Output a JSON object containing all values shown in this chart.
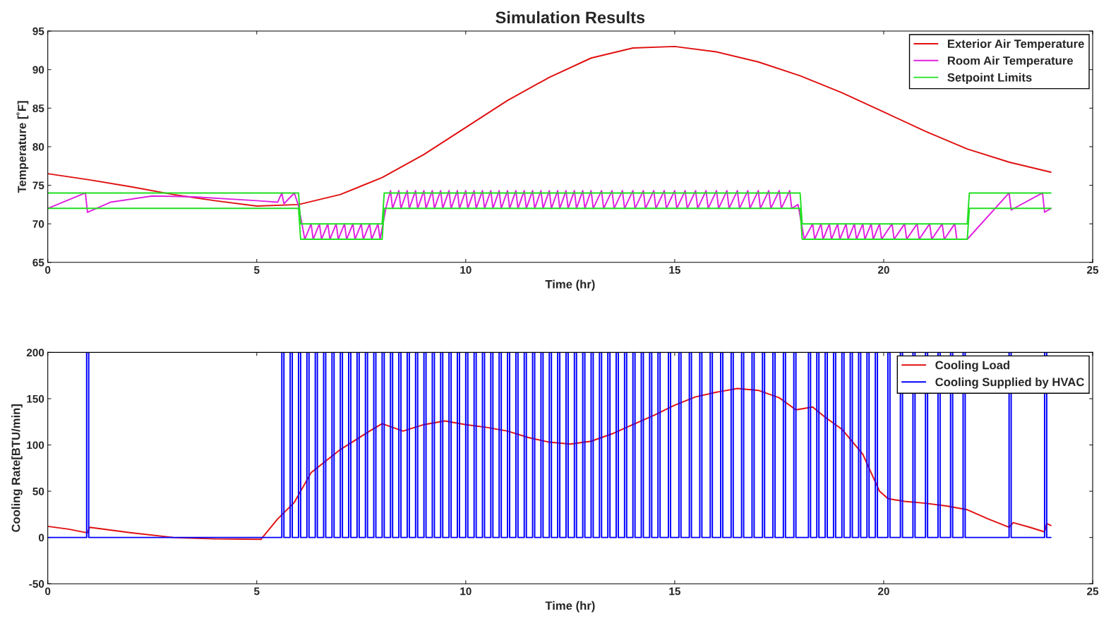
{
  "chart_data": [
    {
      "type": "line",
      "title": "Simulation Results",
      "xlabel": "Time (hr)",
      "ylabel": "Temperature [˚F]",
      "xlim": [
        0,
        25
      ],
      "xticks": [
        0,
        5,
        10,
        15,
        20,
        25
      ],
      "ylim": [
        65,
        95
      ],
      "yticks": [
        65,
        70,
        75,
        80,
        85,
        90,
        95
      ],
      "legend": "top right",
      "series": [
        {
          "name": "Exterior Air Temperature",
          "color": "#e01010",
          "type": "line",
          "x": [
            0,
            1,
            2,
            3,
            4,
            5,
            6,
            7,
            8,
            9,
            10,
            11,
            12,
            13,
            14,
            15,
            16,
            17,
            18,
            19,
            20,
            21,
            22,
            23,
            24
          ],
          "values": [
            76.5,
            75.7,
            74.8,
            73.8,
            73.0,
            72.3,
            72.5,
            73.8,
            76,
            79,
            82.5,
            86,
            89,
            91.5,
            92.8,
            93,
            92.3,
            91,
            89.2,
            87,
            84.5,
            82,
            79.7,
            78,
            76.7
          ]
        },
        {
          "name": "Room Air Temperature",
          "color": "#e020e0",
          "type": "line",
          "x": [
            0,
            0.9,
            0.95,
            1.5,
            2.5,
            3.5,
            5,
            5.5,
            5.6,
            5.65,
            5.9,
            6.0,
            6.15,
            6.3,
            6.35,
            6.5,
            6.55,
            6.7,
            6.75,
            6.9,
            6.95,
            7.1,
            7.15,
            7.3,
            7.35,
            7.5,
            7.55,
            7.7,
            7.75,
            7.9,
            7.95,
            8.1,
            8.2,
            8.25,
            8.4,
            8.45,
            8.6,
            8.65,
            8.8,
            8.85,
            9.0,
            9.05,
            9.2,
            9.25,
            9.4,
            9.45,
            9.6,
            9.65,
            9.8,
            9.85,
            10.0,
            10.05,
            10.2,
            10.25,
            10.4,
            10.45,
            10.6,
            10.65,
            10.8,
            10.85,
            11.0,
            11.05,
            11.2,
            11.25,
            11.4,
            11.45,
            11.6,
            11.65,
            11.8,
            11.85,
            12.0,
            12.05,
            12.2,
            12.25,
            12.4,
            12.45,
            12.6,
            12.65,
            12.8,
            12.85,
            13.0,
            13.05,
            13.25,
            13.3,
            13.5,
            13.55,
            13.75,
            13.8,
            14.0,
            14.05,
            14.25,
            14.3,
            14.5,
            14.55,
            14.75,
            14.8,
            15.0,
            15.05,
            15.25,
            15.3,
            15.5,
            15.55,
            15.75,
            15.8,
            16.0,
            16.05,
            16.25,
            16.3,
            16.5,
            16.55,
            16.75,
            16.8,
            17.0,
            17.05,
            17.25,
            17.3,
            17.5,
            17.55,
            17.75,
            17.8,
            17.95,
            18.1,
            18.3,
            18.35,
            18.5,
            18.55,
            18.7,
            18.75,
            18.9,
            18.95,
            19.1,
            19.15,
            19.3,
            19.35,
            19.5,
            19.55,
            19.7,
            19.75,
            19.9,
            19.95,
            20.2,
            20.25,
            20.5,
            20.55,
            20.8,
            20.85,
            21.1,
            21.15,
            21.4,
            21.45,
            21.7,
            21.75,
            22.0,
            23.0,
            23.05,
            23.8,
            23.85,
            24
          ],
          "values": [
            72,
            74,
            71.5,
            72.8,
            73.6,
            73.5,
            73,
            72.8,
            74,
            72.6,
            74,
            72.3,
            68,
            70,
            68,
            70,
            68,
            70,
            68,
            70,
            68,
            70,
            68,
            70,
            68,
            70,
            68,
            70,
            68,
            70,
            68,
            72.3,
            74.3,
            72,
            74.3,
            72,
            74.3,
            72,
            74.3,
            72,
            74.3,
            72,
            74.3,
            72,
            74.3,
            72,
            74.3,
            72,
            74.3,
            72,
            74.3,
            72,
            74.3,
            72,
            74.3,
            72,
            74.3,
            72,
            74.3,
            72,
            74.3,
            72,
            74.3,
            72,
            74.3,
            72,
            74.3,
            72,
            74.3,
            72,
            74.3,
            72,
            74.3,
            72,
            74.3,
            72,
            74.3,
            72,
            74.3,
            72,
            74.3,
            72,
            74.3,
            72,
            74.3,
            72,
            74.3,
            72,
            74.3,
            72,
            74.3,
            72,
            74.3,
            72,
            74.3,
            72,
            74.3,
            72,
            74.3,
            72,
            74.3,
            72,
            74.3,
            72,
            74.3,
            72,
            74.3,
            72,
            74.3,
            72,
            74.3,
            72,
            74.3,
            72,
            74.3,
            72,
            74.3,
            72,
            74.3,
            72,
            72.5,
            68,
            70,
            68,
            70,
            68,
            70,
            68,
            70,
            68,
            70,
            68,
            70,
            68,
            70,
            68,
            70,
            68,
            70,
            68,
            70,
            68,
            70,
            68,
            70,
            68,
            70,
            68,
            70,
            68,
            70,
            68,
            68,
            74,
            71.8,
            74,
            71.5,
            72
          ]
        },
        {
          "name": "Setpoint Limits",
          "color": "#20e020",
          "type": "line",
          "x": [
            0,
            6,
            6.05,
            8,
            8.05,
            18,
            18.05,
            22,
            22.05,
            24
          ],
          "values": [
            74,
            74,
            70,
            70,
            74,
            74,
            70,
            70,
            74,
            74
          ]
        },
        {
          "color": "#20e020",
          "type": "line",
          "x": [
            0,
            6,
            6.05,
            8,
            8.05,
            18,
            18.05,
            22,
            22.05,
            24
          ],
          "values": [
            72,
            72,
            68,
            68,
            72,
            72,
            68,
            68,
            72,
            72
          ]
        }
      ]
    },
    {
      "type": "line",
      "xlabel": "Time (hr)",
      "ylabel": "Cooling Rate[BTU/min]",
      "xlim": [
        0,
        25
      ],
      "xticks": [
        0,
        5,
        10,
        15,
        20,
        25
      ],
      "ylim": [
        -50,
        200
      ],
      "yticks": [
        -50,
        0,
        50,
        100,
        150,
        200
      ],
      "legend": "top right",
      "series": [
        {
          "name": "Cooling Load",
          "color": "#e01010",
          "type": "line",
          "x": [
            0,
            0.5,
            0.95,
            1.0,
            2,
            3,
            4,
            5.1,
            5.5,
            5.9,
            6.3,
            7,
            7.7,
            8,
            8.5,
            9,
            9.5,
            10,
            10.5,
            11,
            11.5,
            12,
            12.5,
            13,
            13.5,
            14,
            14.5,
            15,
            15.5,
            16,
            16.5,
            17,
            17.5,
            17.9,
            18.3,
            18.6,
            19,
            19.5,
            19.9,
            20.1,
            20.5,
            21,
            21.5,
            22,
            22.5,
            23,
            23.1,
            23.5,
            23.85,
            23.9,
            24
          ],
          "values": [
            12,
            9,
            5,
            11,
            5,
            0,
            -1.5,
            -2,
            20,
            38,
            70,
            95,
            115,
            123,
            115,
            122,
            126,
            122,
            119,
            115,
            108,
            103,
            101,
            104,
            112,
            122,
            132,
            143,
            152,
            157,
            161,
            159,
            151,
            138,
            141,
            130,
            117,
            90,
            50,
            42,
            39,
            37,
            34,
            30,
            20,
            11,
            16,
            11,
            6,
            15,
            13
          ]
        },
        {
          "name": "Cooling Supplied by HVAC",
          "color": "#0000ff",
          "type": "step",
          "x": [
            0,
            0.93,
            0.98,
            5.6,
            5.65,
            5.8,
            5.85,
            6.0,
            6.05,
            6.2,
            6.25,
            6.4,
            6.45,
            6.6,
            6.65,
            6.8,
            6.85,
            7.0,
            7.05,
            7.2,
            7.25,
            7.4,
            7.45,
            7.6,
            7.65,
            7.8,
            7.85,
            8.0,
            8.05,
            8.2,
            8.25,
            8.4,
            8.45,
            8.6,
            8.65,
            8.8,
            8.85,
            9.0,
            9.05,
            9.2,
            9.25,
            9.4,
            9.45,
            9.6,
            9.65,
            9.8,
            9.85,
            10.0,
            10.05,
            10.2,
            10.25,
            10.4,
            10.45,
            10.6,
            10.65,
            10.8,
            10.85,
            11.0,
            11.05,
            11.2,
            11.25,
            11.4,
            11.45,
            11.6,
            11.65,
            11.8,
            11.85,
            12.0,
            12.05,
            12.2,
            12.25,
            12.4,
            12.45,
            12.6,
            12.65,
            12.8,
            12.85,
            13.0,
            13.05,
            13.2,
            13.25,
            13.4,
            13.45,
            13.6,
            13.65,
            13.8,
            13.85,
            14.0,
            14.05,
            14.2,
            14.25,
            14.4,
            14.45,
            14.6,
            14.65,
            14.85,
            14.9,
            15.1,
            15.15,
            15.35,
            15.4,
            15.6,
            15.65,
            15.85,
            15.9,
            16.1,
            16.15,
            16.35,
            16.4,
            16.6,
            16.65,
            16.85,
            16.9,
            17.1,
            17.15,
            17.35,
            17.4,
            17.6,
            17.65,
            17.85,
            17.9,
            18.2,
            18.25,
            18.4,
            18.45,
            18.6,
            18.65,
            18.8,
            18.85,
            19.0,
            19.05,
            19.2,
            19.25,
            19.4,
            19.45,
            19.6,
            19.65,
            19.8,
            19.85,
            20.1,
            20.15,
            20.4,
            20.45,
            20.7,
            20.75,
            21.0,
            21.05,
            21.3,
            21.35,
            21.6,
            21.65,
            21.9,
            21.95,
            23.0,
            23.05,
            23.85,
            23.9,
            24
          ],
          "values": [
            0,
            200,
            0,
            200,
            0,
            200,
            0,
            200,
            0,
            200,
            0,
            200,
            0,
            200,
            0,
            200,
            0,
            200,
            0,
            200,
            0,
            200,
            0,
            200,
            0,
            200,
            0,
            200,
            0,
            200,
            0,
            200,
            0,
            200,
            0,
            200,
            0,
            200,
            0,
            200,
            0,
            200,
            0,
            200,
            0,
            200,
            0,
            200,
            0,
            200,
            0,
            200,
            0,
            200,
            0,
            200,
            0,
            200,
            0,
            200,
            0,
            200,
            0,
            200,
            0,
            200,
            0,
            200,
            0,
            200,
            0,
            200,
            0,
            200,
            0,
            200,
            0,
            200,
            0,
            200,
            0,
            200,
            0,
            200,
            0,
            200,
            0,
            200,
            0,
            200,
            0,
            200,
            0,
            200,
            0,
            200,
            0,
            200,
            0,
            200,
            0,
            200,
            0,
            200,
            0,
            200,
            0,
            200,
            0,
            200,
            0,
            200,
            0,
            200,
            0,
            200,
            0,
            200,
            0,
            200,
            0,
            200,
            0,
            200,
            0,
            200,
            0,
            200,
            0,
            200,
            0,
            200,
            0,
            200,
            0,
            200,
            0,
            200,
            0,
            200,
            0,
            200,
            0,
            200,
            0,
            200,
            0,
            200,
            0,
            200,
            0,
            200,
            0,
            200,
            0,
            200,
            0,
            0
          ]
        }
      ]
    }
  ]
}
